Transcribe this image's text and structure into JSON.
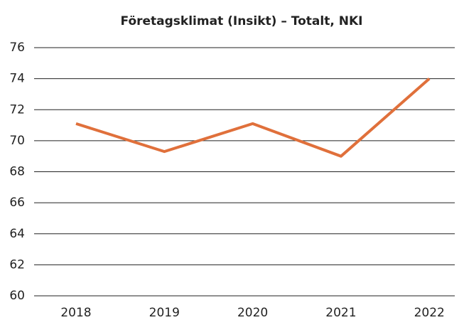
{
  "chart_data": {
    "type": "line",
    "title": "Företagsklimat (Insikt) – Totalt, NKI",
    "categories": [
      "2018",
      "2019",
      "2020",
      "2021",
      "2022"
    ],
    "series": [
      {
        "name": "NKI",
        "color": "#e0703b",
        "values": [
          71.1,
          69.3,
          71.1,
          69.0,
          74.0
        ]
      }
    ],
    "ylim": [
      60,
      76
    ],
    "yticks": [
      60,
      62,
      64,
      66,
      68,
      70,
      72,
      74,
      76
    ],
    "grid": true
  }
}
